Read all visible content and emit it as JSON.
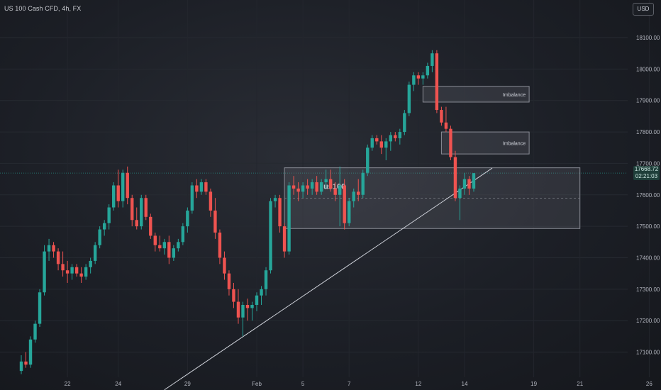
{
  "header": {
    "title": "US 100 Cash CFD, 4h, FX",
    "currency": "USD"
  },
  "price_tag": {
    "price": "17668.72",
    "countdown": "02:21:03"
  },
  "colors": {
    "up": "#26a69a",
    "down": "#ef5350",
    "zone": "#9598a1",
    "trend": "#d1d4dc"
  },
  "chart_data": {
    "type": "candlestick",
    "title": "US 100 Cash CFD, 4h, FX",
    "ylim": [
      17020,
      18170
    ],
    "y_ticks": [
      17100,
      17200,
      17300,
      17400,
      17500,
      17600,
      17700,
      17800,
      17900,
      18000,
      18100
    ],
    "y_tick_labels": [
      "17100.00",
      "17200.00",
      "17300.00",
      "17400.00",
      "17500.00",
      "17600.00",
      "17700.00",
      "17800.00",
      "17900.00",
      "18000.00",
      "18100.00"
    ],
    "x_ticks": [
      {
        "label": "22",
        "bar": 10
      },
      {
        "label": "24",
        "bar": 21
      },
      {
        "label": "29",
        "bar": 36
      },
      {
        "label": "Feb",
        "bar": 51
      },
      {
        "label": "5",
        "bar": 61
      },
      {
        "label": "7",
        "bar": 71
      },
      {
        "label": "12",
        "bar": 86
      },
      {
        "label": "14",
        "bar": 96
      },
      {
        "label": "19",
        "bar": 111
      },
      {
        "label": "21",
        "bar": 121
      },
      {
        "label": "26",
        "bar": 136
      }
    ],
    "candles": [
      [
        17040,
        17090,
        17030,
        17070
      ],
      [
        17070,
        17100,
        17050,
        17060
      ],
      [
        17060,
        17150,
        17050,
        17140
      ],
      [
        17140,
        17200,
        17130,
        17190
      ],
      [
        17190,
        17300,
        17180,
        17290
      ],
      [
        17290,
        17440,
        17280,
        17420
      ],
      [
        17420,
        17460,
        17390,
        17440
      ],
      [
        17440,
        17450,
        17400,
        17420
      ],
      [
        17420,
        17430,
        17360,
        17380
      ],
      [
        17380,
        17420,
        17340,
        17360
      ],
      [
        17360,
        17390,
        17320,
        17350
      ],
      [
        17350,
        17380,
        17330,
        17370
      ],
      [
        17370,
        17380,
        17340,
        17350
      ],
      [
        17350,
        17370,
        17320,
        17340
      ],
      [
        17340,
        17380,
        17330,
        17370
      ],
      [
        17370,
        17400,
        17350,
        17390
      ],
      [
        17390,
        17450,
        17380,
        17440
      ],
      [
        17440,
        17500,
        17430,
        17490
      ],
      [
        17490,
        17520,
        17470,
        17510
      ],
      [
        17510,
        17570,
        17490,
        17560
      ],
      [
        17560,
        17640,
        17550,
        17630
      ],
      [
        17630,
        17680,
        17560,
        17580
      ],
      [
        17580,
        17680,
        17560,
        17670
      ],
      [
        17670,
        17690,
        17570,
        17590
      ],
      [
        17590,
        17600,
        17500,
        17520
      ],
      [
        17520,
        17560,
        17490,
        17500
      ],
      [
        17500,
        17600,
        17490,
        17590
      ],
      [
        17590,
        17600,
        17520,
        17530
      ],
      [
        17530,
        17540,
        17460,
        17470
      ],
      [
        17470,
        17480,
        17420,
        17440
      ],
      [
        17440,
        17470,
        17420,
        17430
      ],
      [
        17430,
        17460,
        17410,
        17450
      ],
      [
        17450,
        17470,
        17380,
        17400
      ],
      [
        17400,
        17440,
        17390,
        17430
      ],
      [
        17430,
        17460,
        17420,
        17450
      ],
      [
        17450,
        17510,
        17440,
        17500
      ],
      [
        17500,
        17560,
        17480,
        17550
      ],
      [
        17550,
        17640,
        17540,
        17630
      ],
      [
        17630,
        17650,
        17590,
        17610
      ],
      [
        17610,
        17650,
        17600,
        17640
      ],
      [
        17640,
        17650,
        17600,
        17610
      ],
      [
        17610,
        17620,
        17530,
        17550
      ],
      [
        17550,
        17590,
        17460,
        17480
      ],
      [
        17480,
        17490,
        17380,
        17400
      ],
      [
        17400,
        17420,
        17330,
        17350
      ],
      [
        17350,
        17360,
        17280,
        17300
      ],
      [
        17300,
        17320,
        17240,
        17260
      ],
      [
        17260,
        17300,
        17190,
        17210
      ],
      [
        17210,
        17260,
        17150,
        17250
      ],
      [
        17250,
        17270,
        17200,
        17240
      ],
      [
        17240,
        17260,
        17200,
        17250
      ],
      [
        17250,
        17290,
        17230,
        17280
      ],
      [
        17280,
        17310,
        17250,
        17300
      ],
      [
        17300,
        17370,
        17280,
        17360
      ],
      [
        17360,
        17590,
        17350,
        17580
      ],
      [
        17580,
        17600,
        17560,
        17590
      ],
      [
        17590,
        17600,
        17480,
        17500
      ],
      [
        17500,
        17510,
        17400,
        17420
      ],
      [
        17420,
        17640,
        17410,
        17630
      ],
      [
        17630,
        17660,
        17600,
        17620
      ],
      [
        17620,
        17640,
        17580,
        17610
      ],
      [
        17610,
        17640,
        17590,
        17630
      ],
      [
        17630,
        17650,
        17600,
        17620
      ],
      [
        17620,
        17650,
        17600,
        17640
      ],
      [
        17640,
        17660,
        17600,
        17610
      ],
      [
        17610,
        17650,
        17600,
        17640
      ],
      [
        17640,
        17680,
        17620,
        17650
      ],
      [
        17650,
        17680,
        17610,
        17620
      ],
      [
        17620,
        17640,
        17580,
        17600
      ],
      [
        17600,
        17690,
        17500,
        17630
      ],
      [
        17630,
        17650,
        17490,
        17510
      ],
      [
        17510,
        17590,
        17500,
        17580
      ],
      [
        17580,
        17620,
        17560,
        17610
      ],
      [
        17610,
        17650,
        17580,
        17600
      ],
      [
        17600,
        17680,
        17590,
        17670
      ],
      [
        17670,
        17760,
        17660,
        17750
      ],
      [
        17750,
        17790,
        17740,
        17780
      ],
      [
        17780,
        17790,
        17760,
        17770
      ],
      [
        17770,
        17790,
        17730,
        17750
      ],
      [
        17750,
        17780,
        17710,
        17770
      ],
      [
        17770,
        17800,
        17740,
        17790
      ],
      [
        17790,
        17800,
        17770,
        17780
      ],
      [
        17780,
        17810,
        17760,
        17800
      ],
      [
        17800,
        17870,
        17790,
        17860
      ],
      [
        17860,
        17960,
        17850,
        17950
      ],
      [
        17950,
        17990,
        17930,
        17980
      ],
      [
        17980,
        17990,
        17950,
        17970
      ],
      [
        17970,
        17990,
        17950,
        17980
      ],
      [
        17980,
        18020,
        17970,
        18010
      ],
      [
        18010,
        18060,
        17990,
        18050
      ],
      [
        18050,
        18060,
        17860,
        17870
      ],
      [
        17870,
        17880,
        17820,
        17830
      ],
      [
        17830,
        17880,
        17800,
        17810
      ],
      [
        17810,
        17820,
        17710,
        17720
      ],
      [
        17720,
        17740,
        17580,
        17590
      ],
      [
        17590,
        17630,
        17520,
        17620
      ],
      [
        17620,
        17670,
        17600,
        17650
      ],
      [
        17650,
        17660,
        17600,
        17620
      ],
      [
        17620,
        17669,
        17610,
        17669
      ]
    ],
    "annotations": [
      {
        "type": "zone",
        "label": "Imbalance",
        "from_bar": 87,
        "to_bar": 110,
        "y_low": 17895,
        "y_high": 17945
      },
      {
        "type": "zone",
        "label": "Imbalance",
        "from_bar": 91,
        "to_bar": 110,
        "y_low": 17730,
        "y_high": 17800
      },
      {
        "type": "zone",
        "label": "us100",
        "from_bar": 57,
        "to_bar": 121,
        "y_low": 17493,
        "y_high": 17686
      },
      {
        "type": "trendline",
        "from": [
          31,
          16980
        ],
        "to": [
          102,
          17685
        ]
      }
    ]
  }
}
